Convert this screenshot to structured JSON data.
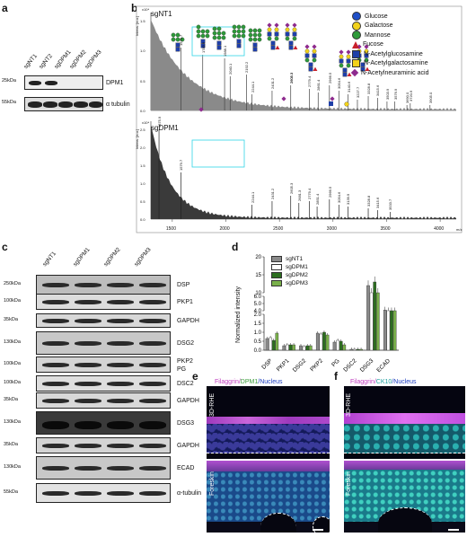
{
  "panels": {
    "a": "a",
    "b": "b",
    "c": "c",
    "d": "d",
    "e": "e",
    "f": "f"
  },
  "panel_a": {
    "lanes": [
      "sgNT1",
      "sgNT2",
      "sgDPM1",
      "sgDPM2",
      "sgDPM3"
    ],
    "markers": [
      "25kDa",
      "55kDa"
    ],
    "targets": [
      "DPM1",
      "α tubulin"
    ]
  },
  "panel_b": {
    "top_label": "sgNT1",
    "bottom_label": "sgDPM1",
    "y_axis_label": "Intens. [a.u.]",
    "exp_top": "x10⁴",
    "exp_bottom": "x10⁴",
    "x_unit": "m/z",
    "x_ticks": [
      "1500",
      "2000",
      "2500",
      "3000",
      "3500",
      "4000"
    ],
    "y_ticks_top": [
      "0.0",
      "0.5",
      "1.0",
      "1.5"
    ],
    "y_ticks_bottom": [
      "0.0",
      "0.5",
      "1.0",
      "1.5",
      "2.0",
      "2.5"
    ],
    "top_peaks": [
      "1579.7",
      "1783.9",
      "1988.1",
      "2040.1",
      "2192.2",
      "2244.1",
      "2431.2",
      "2605.3",
      "2605.3",
      "2779.4",
      "2861.4",
      "2966.5",
      "3054.6",
      "3140.6",
      "3227.7",
      "3328.8",
      "3415.6",
      "3503.9",
      "3576.9",
      "3690.0",
      "3720.9",
      "3905.0"
    ],
    "bottom_peaks": [
      "1375.9",
      "1579.7",
      "2244.1",
      "2431.2",
      "2605.3",
      "2681.3",
      "2779.4",
      "2851.4",
      "2966.5",
      "3054.6",
      "3139.9",
      "3328.8",
      "3415.6",
      "3533.7"
    ],
    "legend": [
      {
        "name": "Glucose",
        "color": "#1f4fc8",
        "shape": "circle"
      },
      {
        "name": "Galactose",
        "color": "#f2d21b",
        "shape": "circle"
      },
      {
        "name": "Mannose",
        "color": "#2e9a3a",
        "shape": "circle"
      },
      {
        "name": "Fucose",
        "color": "#c8202a",
        "shape": "triangle"
      },
      {
        "name": "N-Acetylglucosamine",
        "color": "#1f3fa8",
        "shape": "square"
      },
      {
        "name": "N-Acetylgalactosamine",
        "color": "#f2d21b",
        "shape": "square"
      },
      {
        "name": "N-Acetylneuraminic acid",
        "color": "#8e2a8e",
        "shape": "diamond"
      }
    ]
  },
  "panel_c": {
    "lanes": [
      "sgNT1",
      "sgDPM1",
      "sgDPM2",
      "sgDPM3"
    ],
    "blots": [
      {
        "marker": "250kDa",
        "targets": [
          "DSP"
        ]
      },
      {
        "marker": "100kDa",
        "targets": [
          "PKP1"
        ]
      },
      {
        "marker": "35kDa",
        "targets": [
          "GAPDH"
        ]
      },
      {
        "marker": "130kDa",
        "targets": [
          "DSG2"
        ]
      },
      {
        "marker": "100kDa",
        "targets": [
          "PKP2",
          "PG"
        ]
      },
      {
        "marker": "100kDa",
        "targets": [
          "DSC2"
        ]
      },
      {
        "marker": "35kDa",
        "targets": [
          "GAPDH"
        ]
      },
      {
        "marker": "130kDa",
        "targets": [
          "DSG3"
        ]
      },
      {
        "marker": "35kDa",
        "targets": [
          "GAPDH"
        ]
      },
      {
        "marker": "130kDa",
        "targets": [
          "ECAD"
        ]
      },
      {
        "marker": "55kDa",
        "targets": [
          "α-tubulin"
        ]
      }
    ]
  },
  "chart_data": {
    "type": "bar",
    "categories": [
      "DSP",
      "PKP1",
      "DSG2",
      "PKP2",
      "PG",
      "DSC2",
      "DSG3",
      "ECAD"
    ],
    "series": [
      {
        "name": "sgNT1",
        "color": "#8a8a8a",
        "values": [
          0.65,
          0.25,
          0.25,
          0.95,
          0.45,
          0.05,
          12.0,
          4.1
        ]
      },
      {
        "name": "sgDPM1",
        "color": "#ffffff",
        "values": [
          0.7,
          0.3,
          0.2,
          0.9,
          0.55,
          0.05,
          9.5,
          3.5
        ]
      },
      {
        "name": "sgDPM2",
        "color": "#2c6e1f",
        "values": [
          0.55,
          0.3,
          0.25,
          1.0,
          0.5,
          0.05,
          13.0,
          3.3
        ]
      },
      {
        "name": "sgDPM3",
        "color": "#79b04a",
        "values": [
          0.95,
          0.3,
          0.25,
          0.85,
          0.3,
          0.05,
          9.5,
          3.8
        ]
      }
    ],
    "ylabel": "Normalized intensity",
    "y_ticks_lower": [
      "0.0",
      "0.5",
      "1.0",
      "1.5",
      "2.0"
    ],
    "y_ticks_middle": [
      "4.0",
      "5.0",
      "6.0"
    ],
    "y_ticks_upper": [
      "10",
      "15",
      "20"
    ]
  },
  "panel_e": {
    "title_parts": [
      "Filaggrin/",
      "DPM1",
      "/Nucleus"
    ],
    "rows": [
      "3D-RHE",
      "Foreskin"
    ]
  },
  "panel_f": {
    "title_parts": [
      "Filaggrin/",
      "CK10",
      "/Nucleus"
    ],
    "rows": [
      "3D-RHE",
      "Foreskin"
    ]
  }
}
